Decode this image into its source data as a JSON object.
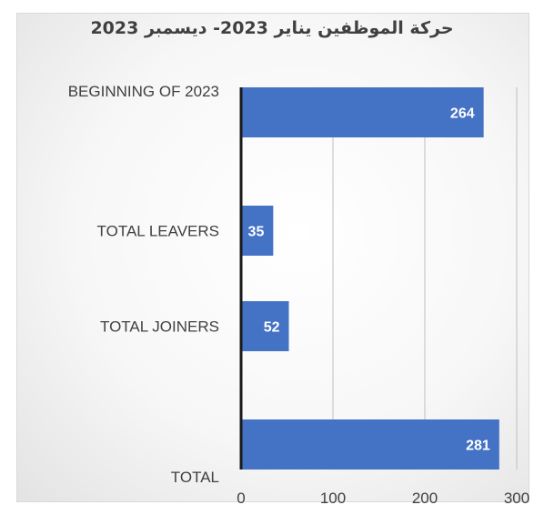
{
  "chart_data": {
    "type": "bar",
    "orientation": "horizontal",
    "title": "حركة الموظفين يناير 2023- ديسمبر 2023",
    "categories": [
      "BEGINNING OF 2023",
      "TOTAL LEAVERS",
      "TOTAL JOINERS",
      "TOTAL"
    ],
    "values": [
      264,
      35,
      52,
      281
    ],
    "data_labels": [
      "264",
      "35",
      "52",
      "281"
    ],
    "x_ticks": [
      "0",
      "100",
      "200",
      "300"
    ],
    "xlim": [
      0,
      300
    ],
    "grid": "vertical",
    "bar_color": "#4472c4"
  }
}
